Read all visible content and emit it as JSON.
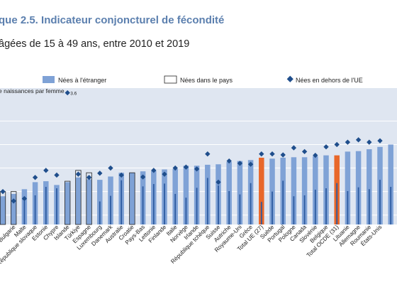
{
  "header": {
    "title": "que 2.5. Indicateur conjoncturel de fécondité",
    "subtitle": "âgées de 15 à 49 ans, entre 2010 et 2019"
  },
  "colors": {
    "foreign_bar": "#7fa2d6",
    "native_bar": "#2c5aa0",
    "highlight_bar": "#e8672a",
    "marker": "#1f4e8c",
    "grid": "#ffffff",
    "plot_bg": "#dfe6f1"
  },
  "chart_data": {
    "type": "bar",
    "ylabel": "e naissances par femme",
    "ylim": [
      0.8,
      3.7
    ],
    "legend": {
      "placement": "top",
      "items": [
        "Nées à l'étranger",
        "Nées dans le pays",
        "Nées en dehors de l'UE"
      ]
    },
    "annotation": "3.6",
    "categories": [
      "",
      "Bulgarie",
      "Malte",
      "République slovaque",
      "Estonie",
      "Chypre",
      "Islande",
      "Türkiye",
      "Espagne",
      "Luxembourg",
      "Danemark",
      "Australie",
      "Croatie",
      "Pays-Bas",
      "Lettonie",
      "Finlande",
      "Italie",
      "Norvège",
      "Irlande",
      "République tchèque",
      "Suisse",
      "Autriche",
      "Royaume-Uni",
      "Grèce",
      "Total UE (27)",
      "Suède",
      "Portugal",
      "Pologne",
      "Canada",
      "Slovénie",
      "Belgique",
      "Total OCDE (31)",
      "Lituanie",
      "Allemagne",
      "Roumanie",
      "États-Unis",
      ""
    ],
    "highlight": [
      "Total UE (27)",
      "Total OCDE (31)"
    ],
    "series": [
      {
        "name": "Nées à l'étranger",
        "values": [
          1.4,
          1.45,
          1.55,
          1.7,
          1.72,
          1.64,
          1.7,
          1.8,
          1.76,
          1.75,
          1.82,
          1.9,
          1.9,
          1.93,
          1.94,
          1.97,
          1.98,
          2.05,
          2.05,
          2.07,
          2.08,
          2.13,
          2.15,
          2.17,
          2.22,
          2.2,
          2.22,
          2.23,
          2.23,
          2.25,
          2.27,
          2.27,
          2.35,
          2.36,
          2.4,
          2.45,
          2.5
        ]
      },
      {
        "name": "Nées dans le pays",
        "values": [
          1.5,
          1.5,
          1.3,
          1.42,
          1.6,
          1.57,
          1.72,
          1.95,
          1.9,
          1.29,
          1.41,
          1.74,
          1.9,
          1.61,
          1.66,
          1.67,
          1.45,
          1.37,
          1.58,
          1.79,
          1.63,
          1.51,
          1.44,
          1.68,
          1.28,
          1.5,
          1.73,
          1.4,
          1.42,
          1.54,
          1.57,
          1.68,
          1.51,
          1.59,
          1.55,
          1.75,
          1.6
        ]
      },
      {
        "name": "Nées en dehors de l'UE",
        "values": [
          1.5,
          1.3,
          1.35,
          1.8,
          1.95,
          1.85,
          3.6,
          1.87,
          1.8,
          1.89,
          2.0,
          1.85,
          null,
          1.81,
          1.95,
          1.87,
          2.0,
          2.02,
          1.98,
          2.3,
          1.7,
          2.15,
          2.1,
          2.08,
          2.3,
          2.3,
          2.28,
          2.43,
          2.35,
          2.27,
          2.45,
          2.5,
          2.55,
          2.6,
          2.55,
          2.58,
          null
        ]
      }
    ]
  }
}
